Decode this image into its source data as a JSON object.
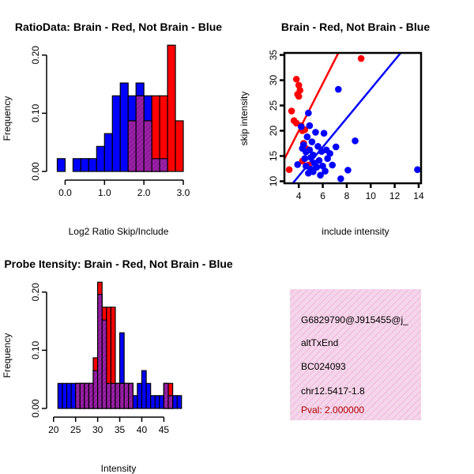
{
  "colors": {
    "red": "#ff0000",
    "blue": "#0000ff",
    "overlap": "#9b1fa8",
    "info_bg": "#f5d5ea",
    "info_hatch": "#eeb8dc",
    "pval": "#b00000"
  },
  "chart_data": [
    {
      "id": "ratio-hist",
      "type": "bar",
      "title": "RatioData: Brain - Red, Not Brain - Blue",
      "xlabel": "Log2 Ratio Skip/Include",
      "ylabel": "Frequency",
      "xlim": [
        -0.25,
        3.0
      ],
      "ylim": [
        0,
        0.22
      ],
      "xticks": [
        0.0,
        1.0,
        2.0,
        3.0
      ],
      "xtick_labels": [
        "0.0",
        "1.0",
        "2.0",
        "3.0"
      ],
      "yticks": [
        0.0,
        0.1,
        0.2
      ],
      "ytick_labels": [
        "0.00",
        "0.10",
        "0.20"
      ],
      "bin_width": 0.2,
      "series": [
        {
          "name": "Not Brain",
          "color": "blue",
          "bins": [
            -0.2,
            0.2,
            0.4,
            0.6,
            0.8,
            1.0,
            1.2,
            1.4,
            1.6,
            1.8,
            2.0,
            2.2,
            2.4
          ],
          "values": [
            0.022,
            0.022,
            0.022,
            0.022,
            0.043,
            0.065,
            0.13,
            0.152,
            0.13,
            0.152,
            0.13,
            0.022,
            0.022
          ]
        },
        {
          "name": "Brain",
          "color": "red",
          "bins": [
            1.6,
            1.8,
            2.0,
            2.2,
            2.4,
            2.6,
            2.8
          ],
          "values": [
            0.087,
            0.13,
            0.087,
            0.13,
            0.13,
            0.217,
            0.087
          ]
        }
      ]
    },
    {
      "id": "intensity-scatter",
      "type": "scatter",
      "title": "Brain - Red, Not Brain - Blue",
      "xlabel": "include intensity",
      "ylabel": "skip intensity",
      "xlim": [
        2.8,
        14.2
      ],
      "ylim": [
        9.6,
        35.4
      ],
      "xticks": [
        4,
        6,
        8,
        10,
        12,
        14
      ],
      "xtick_labels": [
        "4",
        "6",
        "8",
        "10",
        "12",
        "14"
      ],
      "yticks": [
        10,
        15,
        20,
        25,
        30,
        35
      ],
      "ytick_labels": [
        "10",
        "15",
        "20",
        "25",
        "30",
        "35"
      ],
      "series": [
        {
          "name": "Brain",
          "color": "red",
          "points": [
            [
              3.2,
              12.3
            ],
            [
              3.4,
              23.9
            ],
            [
              3.6,
              22.0
            ],
            [
              3.8,
              30.2
            ],
            [
              3.8,
              21.5
            ],
            [
              3.9,
              27.2
            ],
            [
              4.0,
              29.0
            ],
            [
              4.0,
              26.8
            ],
            [
              4.1,
              28.0
            ],
            [
              4.2,
              21.0
            ],
            [
              4.3,
              20.0
            ],
            [
              4.4,
              17.5
            ],
            [
              4.5,
              20.2
            ],
            [
              4.3,
              14.0
            ],
            [
              4.6,
              16.5
            ],
            [
              4.8,
              13.2
            ],
            [
              9.2,
              34.3
            ]
          ],
          "fit_line": [
            [
              2.8,
              14.4
            ],
            [
              7.3,
              35.4
            ]
          ]
        },
        {
          "name": "Not Brain",
          "color": "blue",
          "points": [
            [
              3.9,
              13.3
            ],
            [
              4.2,
              20.8
            ],
            [
              4.3,
              16.5
            ],
            [
              4.4,
              17.2
            ],
            [
              4.5,
              14.5
            ],
            [
              4.6,
              15.8
            ],
            [
              4.6,
              13.0
            ],
            [
              4.7,
              18.8
            ],
            [
              4.8,
              11.6
            ],
            [
              4.8,
              23.5
            ],
            [
              4.9,
              16.2
            ],
            [
              5.0,
              12.4
            ],
            [
              5.0,
              14.7
            ],
            [
              5.1,
              17.8
            ],
            [
              5.2,
              11.9
            ],
            [
              5.2,
              15.2
            ],
            [
              5.3,
              13.6
            ],
            [
              5.4,
              19.7
            ],
            [
              5.5,
              12.8
            ],
            [
              5.6,
              16.9
            ],
            [
              5.7,
              14.1
            ],
            [
              5.8,
              11.2
            ],
            [
              5.9,
              15.9
            ],
            [
              6.0,
              13.0
            ],
            [
              6.1,
              19.5
            ],
            [
              6.2,
              12.0
            ],
            [
              6.3,
              16.2
            ],
            [
              6.4,
              14.5
            ],
            [
              6.6,
              15.5
            ],
            [
              6.8,
              13.2
            ],
            [
              7.1,
              16.8
            ],
            [
              7.3,
              28.2
            ],
            [
              7.5,
              10.5
            ],
            [
              8.1,
              12.2
            ],
            [
              8.7,
              18.0
            ],
            [
              13.9,
              12.3
            ],
            [
              4.9,
              21.0
            ]
          ],
          "fit_line": [
            [
              3.5,
              9.6
            ],
            [
              12.5,
              35.4
            ]
          ]
        }
      ]
    },
    {
      "id": "intensity-hist",
      "type": "bar",
      "title": "Probe Itensity: Brain - Red, Not Brain - Blue",
      "xlabel": "Intensity",
      "ylabel": "Frequency",
      "xlim": [
        20.4,
        49.4
      ],
      "ylim": [
        0,
        0.22
      ],
      "xticks": [
        20,
        25,
        30,
        35,
        40,
        45
      ],
      "xtick_labels": [
        "20",
        "25",
        "30",
        "35",
        "40",
        "45"
      ],
      "yticks": [
        0.0,
        0.1,
        0.2
      ],
      "ytick_labels": [
        "0.00",
        "0.10",
        "0.20"
      ],
      "bin_width": 1,
      "series": [
        {
          "name": "Not Brain",
          "color": "blue",
          "bins": [
            21,
            22,
            23,
            24,
            25,
            26,
            27,
            28,
            29,
            30,
            31,
            32,
            33,
            34,
            35,
            36,
            37,
            38,
            39,
            40,
            41,
            42,
            43,
            44,
            45,
            46,
            47,
            48
          ],
          "values": [
            0.043,
            0.043,
            0.043,
            0.043,
            0.043,
            0.043,
            0.043,
            0.043,
            0.065,
            0.196,
            0.152,
            0.043,
            0.043,
            0.043,
            0.13,
            0.043,
            0.043,
            0.022,
            0.043,
            0.065,
            0.043,
            0.022,
            0.022,
            0.022,
            0.043,
            0.022,
            0.022,
            0.022
          ]
        },
        {
          "name": "Brain",
          "color": "red",
          "bins": [
            25,
            26,
            27,
            28,
            29,
            30,
            31,
            32,
            33,
            34,
            35,
            36,
            37,
            45,
            46
          ],
          "values": [
            0.043,
            0.043,
            0.043,
            0.043,
            0.087,
            0.217,
            0.174,
            0.174,
            0.174,
            0.043,
            0.043,
            0.043,
            0.043,
            0.043,
            0.043
          ]
        }
      ]
    }
  ],
  "info_panel": {
    "id_line": "G6829790@J915455@j_",
    "event_type": "altTxEnd",
    "accession": "BC024093",
    "location": "chr12.5417-1.8",
    "pval": "Pval: 2.000000"
  }
}
